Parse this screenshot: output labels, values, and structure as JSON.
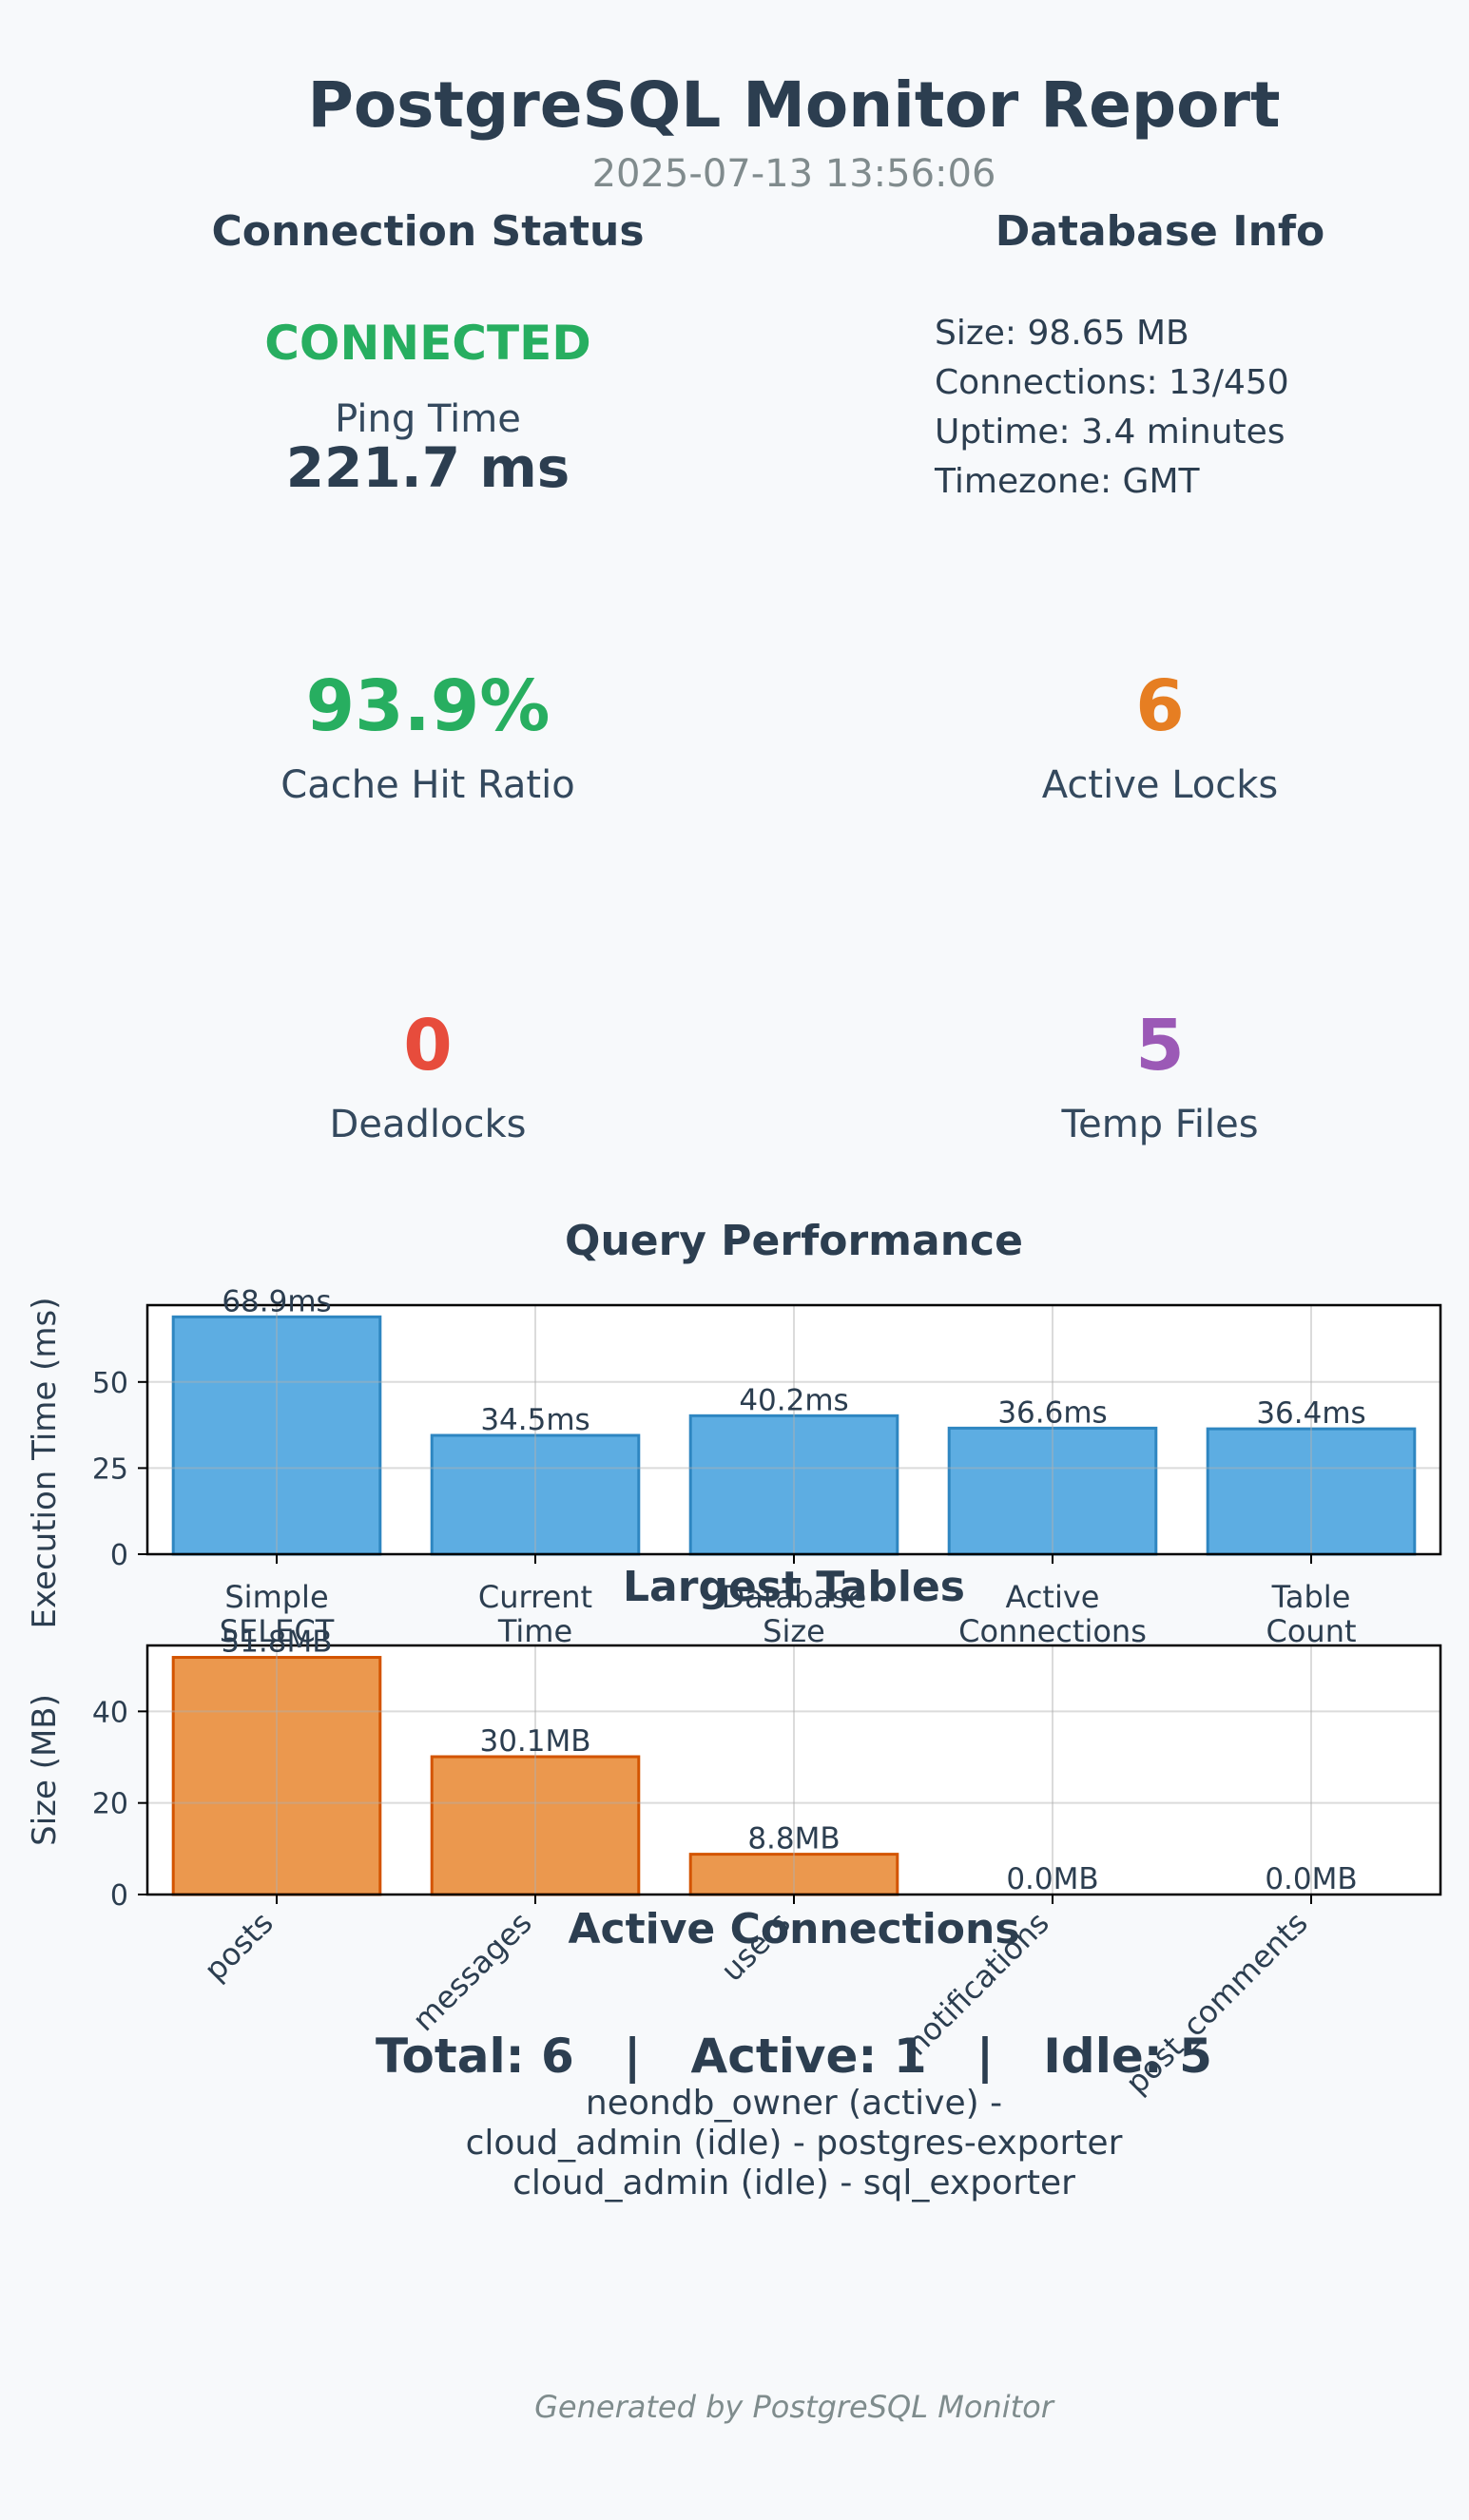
{
  "report": {
    "title": "PostgreSQL Monitor Report",
    "timestamp": "2025-07-13 13:56:06"
  },
  "connection_status": {
    "heading": "Connection Status",
    "status": "CONNECTED",
    "ping_label": "Ping Time",
    "ping_value": "221.7 ms",
    "status_color": "#27ae60"
  },
  "database_info": {
    "heading": "Database Info",
    "lines": [
      "Size: 98.65 MB",
      "Connections: 13/450",
      "Uptime: 3.4 minutes",
      "Timezone: GMT"
    ]
  },
  "metrics": {
    "cache_hit_ratio": {
      "value": "93.9%",
      "label": "Cache Hit Ratio",
      "color": "#27ae60"
    },
    "active_locks": {
      "value": "6",
      "label": "Active Locks",
      "color": "#e67e22"
    },
    "deadlocks": {
      "value": "0",
      "label": "Deadlocks",
      "color": "#e74c3c"
    },
    "temp_files": {
      "value": "5",
      "label": "Temp Files",
      "color": "#9b59b6"
    }
  },
  "chart_data": [
    {
      "type": "bar",
      "title": "Query Performance",
      "ylabel": "Execution Time (ms)",
      "xlabel": "",
      "categories": [
        [
          "Simple",
          "SELECT"
        ],
        [
          "Current",
          "Time"
        ],
        [
          "Database",
          "Size"
        ],
        [
          "Active",
          "Connections"
        ],
        [
          "Table",
          "Count"
        ]
      ],
      "values": [
        68.9,
        34.5,
        40.2,
        36.6,
        36.4
      ],
      "data_labels": [
        "68.9ms",
        "34.5ms",
        "40.2ms",
        "36.6ms",
        "36.4ms"
      ],
      "yticks": [
        0,
        25,
        50
      ],
      "ylim": [
        0,
        72.3
      ],
      "grid": true,
      "bar_color": "#5dade2",
      "edge_color": "#2e86c1"
    },
    {
      "type": "bar",
      "title": "Largest Tables",
      "ylabel": "Size (MB)",
      "xlabel": "",
      "categories": [
        "posts",
        "messages",
        "users",
        "notifications",
        "post_comments"
      ],
      "values": [
        51.8,
        30.1,
        8.8,
        0.0,
        0.0
      ],
      "data_labels": [
        "51.8MB",
        "30.1MB",
        "8.8MB",
        "0.0MB",
        "0.0MB"
      ],
      "yticks": [
        0,
        20,
        40
      ],
      "ylim": [
        0,
        54.4
      ],
      "grid": true,
      "bar_color": "#eb984e",
      "edge_color": "#d35400"
    }
  ],
  "active_connections": {
    "heading": "Active Connections",
    "summary": "Total: 6   |   Active: 1   |   Idle: 5",
    "lines": [
      "neondb_owner (active) -",
      "cloud_admin (idle) - postgres-exporter",
      "cloud_admin (idle) - sql_exporter"
    ]
  },
  "footer": "Generated by PostgreSQL Monitor"
}
